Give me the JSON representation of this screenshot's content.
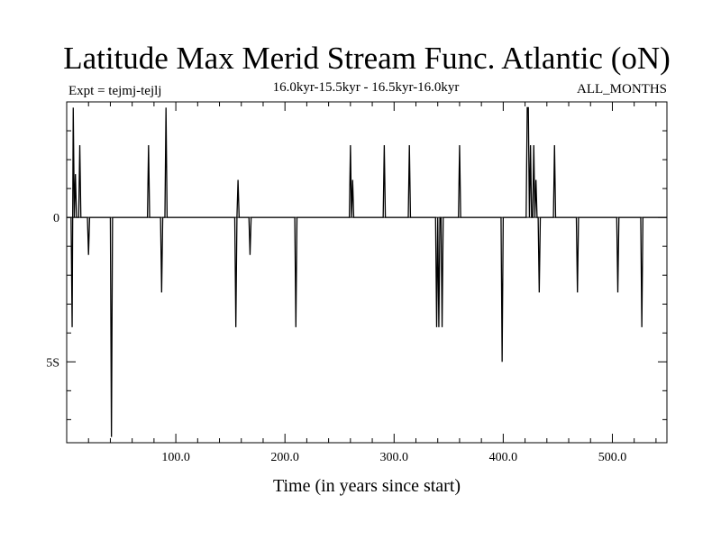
{
  "chart_data": {
    "type": "line",
    "title": "Latitude Max Merid Stream Func. Atlantic (oN)",
    "subtitle": "16.0kyr-15.5kyr - 16.5kyr-16.0kyr",
    "expt_label": "Expt = tejmj-tejlj",
    "months_label": "ALL_MONTHS",
    "xlabel": "Time (in years since start)",
    "ylabel": "",
    "xlim": [
      0,
      550
    ],
    "ylim": [
      -7.8,
      4
    ],
    "grid": false,
    "x_ticks": [
      {
        "value": 100,
        "label": "100.0"
      },
      {
        "value": 200,
        "label": "200.0"
      },
      {
        "value": 300,
        "label": "300.0"
      },
      {
        "value": 400,
        "label": "400.0"
      },
      {
        "value": 500,
        "label": "500.0"
      }
    ],
    "y_ticks": [
      {
        "value": 0,
        "label": "0"
      },
      {
        "value": -5,
        "label": "5S"
      }
    ],
    "series": [
      {
        "color": "#000000",
        "x": [
          0,
          4,
          5,
          6,
          7,
          8,
          9,
          10,
          11,
          12,
          13,
          14,
          19,
          20,
          21,
          40,
          41,
          42,
          43,
          74,
          75,
          76,
          86,
          87,
          88,
          90,
          91,
          92,
          93,
          154,
          155,
          156,
          157,
          158,
          159,
          167,
          168,
          169,
          209,
          210,
          211,
          259,
          260,
          261,
          262,
          263,
          290,
          291,
          292,
          294,
          295,
          296,
          313,
          314,
          315,
          338,
          339,
          340,
          341,
          342,
          343,
          344,
          345,
          359,
          360,
          361,
          398,
          399,
          400,
          421,
          422,
          423,
          424,
          425,
          426,
          427,
          428,
          429,
          430,
          431,
          432,
          433,
          434,
          435,
          436,
          437,
          438,
          439,
          446,
          447,
          448,
          467,
          468,
          469,
          504,
          505,
          506,
          526,
          527,
          528,
          550
        ],
        "y": [
          0,
          0,
          -3.8,
          3.8,
          0,
          1.5,
          0,
          0,
          0,
          2.5,
          0,
          0,
          0,
          -1.3,
          0,
          0,
          -7.6,
          0,
          0,
          0,
          2.5,
          0,
          0,
          -2.6,
          0,
          0,
          3.8,
          0,
          0,
          0,
          -3.8,
          0,
          1.3,
          0,
          0,
          0,
          -1.3,
          0,
          0,
          -3.8,
          0,
          0,
          2.5,
          0,
          1.3,
          0,
          0,
          2.5,
          0,
          0,
          0,
          0,
          0,
          2.5,
          0,
          0,
          -3.8,
          0,
          -3.8,
          0,
          0,
          -3.8,
          0,
          0,
          2.5,
          0,
          0,
          -5.0,
          0,
          0,
          3.8,
          3.8,
          0,
          2.5,
          0,
          0,
          2.5,
          0,
          1.3,
          0,
          0,
          -2.6,
          0,
          0,
          0,
          0,
          0,
          0,
          0,
          2.5,
          0,
          0,
          -2.6,
          0,
          0,
          -2.6,
          0,
          0,
          -3.8,
          0,
          0
        ]
      }
    ]
  }
}
